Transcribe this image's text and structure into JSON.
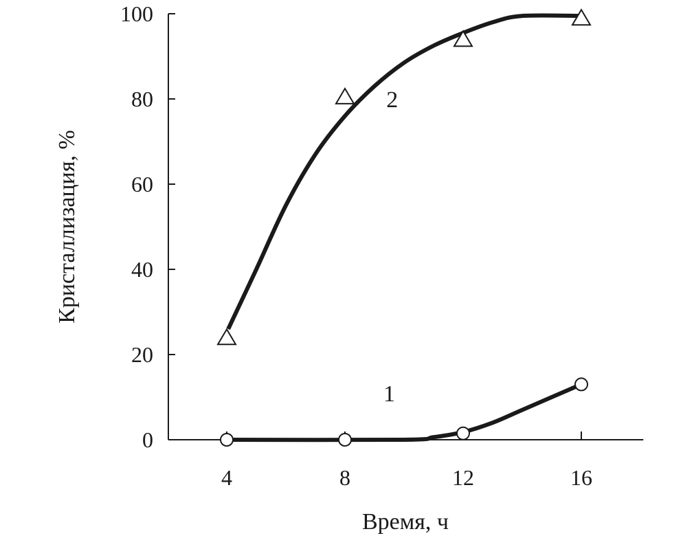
{
  "chart_data": {
    "type": "line",
    "title": "",
    "xlabel": "Время, ч",
    "ylabel": "Кристаллизация, %",
    "xlim": [
      0,
      18
    ],
    "ylim": [
      0,
      100
    ],
    "xticks": [
      4,
      8,
      12,
      16
    ],
    "yticks": [
      0,
      20,
      40,
      60,
      80,
      100
    ],
    "grid": false,
    "series": [
      {
        "name": "1",
        "marker": "circle",
        "points": [
          [
            4,
            0
          ],
          [
            8,
            0
          ],
          [
            12,
            1.5
          ],
          [
            16,
            13
          ]
        ],
        "curve": [
          [
            4,
            0
          ],
          [
            10,
            0
          ],
          [
            11,
            0.6
          ],
          [
            12,
            1.8
          ],
          [
            13,
            4
          ],
          [
            14,
            7
          ],
          [
            16,
            13
          ]
        ],
        "label_at": [
          9.5,
          11
        ]
      },
      {
        "name": "2",
        "marker": "triangle",
        "points": [
          [
            4,
            24
          ],
          [
            8,
            80.5
          ],
          [
            12,
            94
          ],
          [
            16,
            99
          ]
        ],
        "curve": [
          [
            4.05,
            26
          ],
          [
            5,
            40
          ],
          [
            6,
            55
          ],
          [
            7,
            67
          ],
          [
            8,
            76
          ],
          [
            9,
            83
          ],
          [
            10,
            88.5
          ],
          [
            11,
            92.5
          ],
          [
            12,
            95.5
          ],
          [
            13,
            98
          ],
          [
            14,
            99.5
          ],
          [
            16,
            99.5
          ]
        ],
        "label_at": [
          9.6,
          80
        ]
      }
    ],
    "color": "#1a1a1a"
  }
}
